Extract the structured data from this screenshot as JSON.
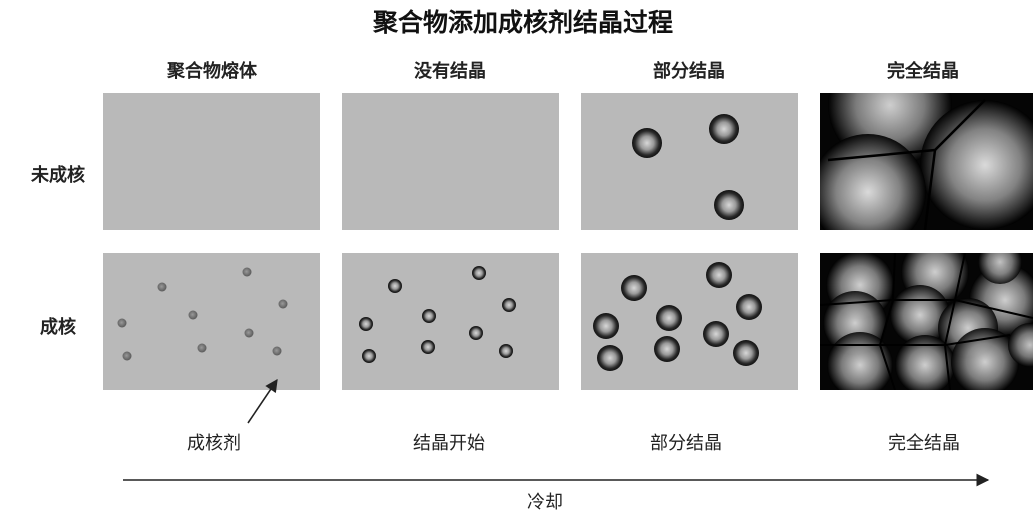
{
  "title": "聚合物添加成核剂结晶过程",
  "columns": [
    "聚合物熔体",
    "没有结晶",
    "部分结晶",
    "完全结晶"
  ],
  "rows": [
    "未成核",
    "成核"
  ],
  "bottom_labels": [
    "成核剂",
    "结晶开始",
    "部分结晶",
    "完全结晶"
  ],
  "axis_label": "冷却",
  "colors": {
    "panel_gray": "#b9b9b9",
    "crystal_dark": "#050505",
    "nucleus": "#6e6e6e",
    "text": "#1a1a1a"
  },
  "panels": {
    "unnucleated": {
      "melt": {
        "state": "melt",
        "spherulites": 0
      },
      "no_crystal": {
        "state": "no-crystal",
        "spherulites": 0
      },
      "partial": {
        "state": "partial",
        "spherulites": 3
      },
      "full": {
        "state": "full",
        "spherulites": 3
      }
    },
    "nucleated": {
      "melt": {
        "state": "melt",
        "nuclei": 9
      },
      "no_crystal": {
        "state": "crystallization-start",
        "spherulites": 9
      },
      "partial": {
        "state": "partial",
        "spherulites": 10
      },
      "full": {
        "state": "full",
        "spherulites": 11
      }
    }
  }
}
